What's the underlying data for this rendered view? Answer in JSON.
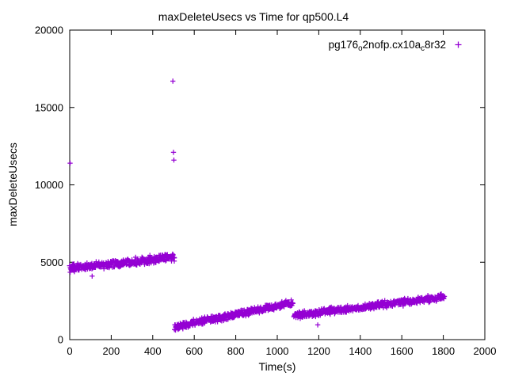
{
  "chart": {
    "title": "maxDeleteUsecs vs Time for qp500.L4",
    "xlabel": "Time(s)",
    "ylabel": "maxDeleteUsecs"
  },
  "chart_data": {
    "type": "scatter",
    "title": "maxDeleteUsecs vs Time for qp500.L4",
    "xlabel": "Time(s)",
    "ylabel": "maxDeleteUsecs",
    "xlim": [
      0,
      2000
    ],
    "ylim": [
      0,
      20000
    ],
    "xticks": [
      0,
      200,
      400,
      600,
      800,
      1000,
      1200,
      1400,
      1600,
      1800,
      2000
    ],
    "yticks": [
      0,
      5000,
      10000,
      15000,
      20000
    ],
    "grid": false,
    "legend_position": "top-right-inside",
    "marker_color": "#9400d3",
    "series": [
      {
        "name": "pg176_o2nofp.cx10a_c8r32",
        "name_parts": [
          {
            "t": "pg176"
          },
          {
            "t": "o",
            "sub": true
          },
          {
            "t": "2nofp.cx10a"
          },
          {
            "t": "c",
            "sub": true
          },
          {
            "t": "8r32"
          }
        ],
        "marker": "plus",
        "color": "#9400d3",
        "trend_segments": [
          {
            "x_start": 0,
            "x_end": 505,
            "y_start": 4600,
            "y_end": 5330,
            "noise": 185,
            "points": 320
          },
          {
            "x_start": 505,
            "x_end": 1075,
            "y_start": 820,
            "y_end": 2380,
            "noise": 165,
            "points": 380
          },
          {
            "x_start": 1080,
            "x_end": 1805,
            "y_start": 1550,
            "y_end": 2750,
            "noise": 170,
            "points": 450
          }
        ],
        "outliers": [
          [
            2,
            11400
          ],
          [
            497,
            16700
          ],
          [
            500,
            12100
          ],
          [
            502,
            11600
          ],
          [
            108,
            4100
          ],
          [
            510,
            620
          ],
          [
            522,
            660
          ],
          [
            545,
            700
          ],
          [
            1195,
            950
          ],
          [
            1790,
            2950
          ]
        ]
      }
    ]
  }
}
